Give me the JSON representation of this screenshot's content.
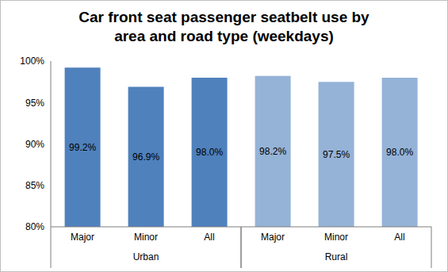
{
  "chart_data": {
    "type": "bar",
    "title": "Car front seat passenger seatbelt use by area and road type (weekdays)",
    "categories": [
      "Major",
      "Minor",
      "All",
      "Major",
      "Minor",
      "All"
    ],
    "groups": [
      "Urban",
      "Rural"
    ],
    "values": [
      99.2,
      96.9,
      98.0,
      98.2,
      97.5,
      98.0
    ],
    "value_labels": [
      "99.2%",
      "96.9%",
      "98.0%",
      "98.2%",
      "97.5%",
      "98.0%"
    ],
    "colors": [
      "#4f81bd",
      "#4f81bd",
      "#4f81bd",
      "#95b3d7",
      "#95b3d7",
      "#95b3d7"
    ],
    "ylim": [
      80,
      100
    ],
    "yticks": [
      {
        "value": 80,
        "label": "80%"
      },
      {
        "value": 85,
        "label": "85%"
      },
      {
        "value": 90,
        "label": "90%"
      },
      {
        "value": 95,
        "label": "95%"
      },
      {
        "value": 100,
        "label": "100%"
      }
    ],
    "grid": false,
    "data_labels": true
  }
}
